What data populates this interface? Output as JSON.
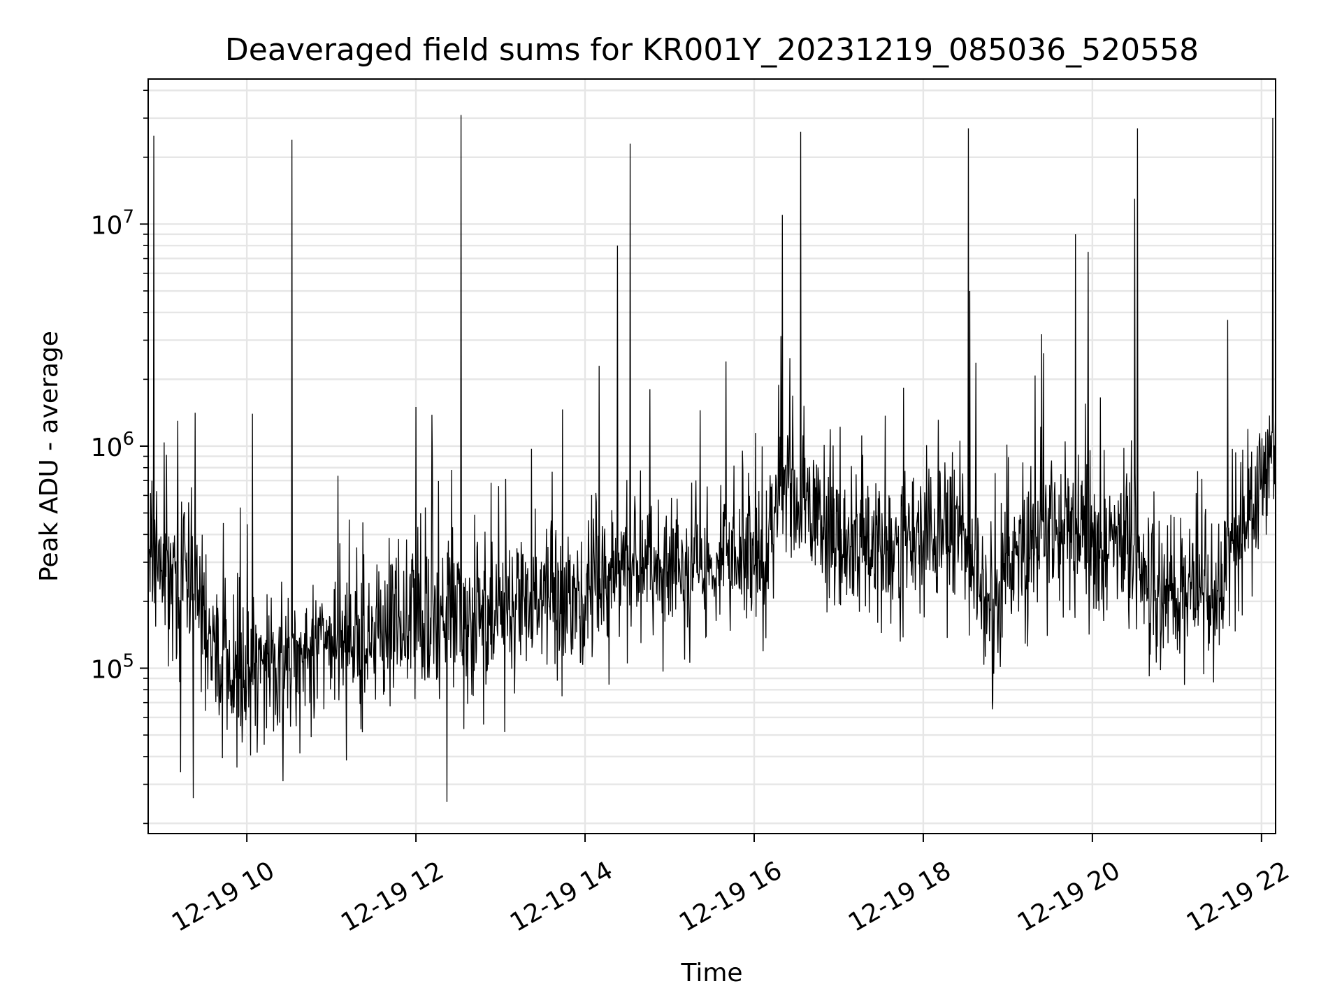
{
  "chart_data": {
    "type": "line",
    "title": "Deaveraged field sums for KR001Y_20231219_085036_520558",
    "xlabel": "Time",
    "ylabel": "Peak ADU - average",
    "yscale": "log",
    "ylim": [
      18000,
      45000000
    ],
    "xlim": [
      "2023-12-19 08:50",
      "2023-12-19 22:10"
    ],
    "grid": true,
    "line_color": "#000000",
    "grid_color": "#e6e6e6",
    "x_ticks": [
      {
        "value": "2023-12-19 10:00",
        "label": "12-19 10"
      },
      {
        "value": "2023-12-19 12:00",
        "label": "12-19 12"
      },
      {
        "value": "2023-12-19 14:00",
        "label": "12-19 14"
      },
      {
        "value": "2023-12-19 16:00",
        "label": "12-19 16"
      },
      {
        "value": "2023-12-19 18:00",
        "label": "12-19 18"
      },
      {
        "value": "2023-12-19 20:00",
        "label": "12-19 20"
      },
      {
        "value": "2023-12-19 22:00",
        "label": "12-19 22"
      }
    ],
    "y_ticks": [
      {
        "value": 100000,
        "base": "10",
        "exp": "5"
      },
      {
        "value": 1000000,
        "base": "10",
        "exp": "6"
      },
      {
        "value": 10000000,
        "base": "10",
        "exp": "7"
      }
    ],
    "baseline": [
      {
        "x": "2023-12-19 08:50",
        "y": 320000
      },
      {
        "x": "2023-12-19 09:15",
        "y": 260000
      },
      {
        "x": "2023-12-19 09:40",
        "y": 110000
      },
      {
        "x": "2023-12-19 10:00",
        "y": 95000
      },
      {
        "x": "2023-12-19 10:30",
        "y": 110000
      },
      {
        "x": "2023-12-19 11:00",
        "y": 130000
      },
      {
        "x": "2023-12-19 11:30",
        "y": 150000
      },
      {
        "x": "2023-12-19 12:00",
        "y": 165000
      },
      {
        "x": "2023-12-19 12:30",
        "y": 185000
      },
      {
        "x": "2023-12-19 13:00",
        "y": 190000
      },
      {
        "x": "2023-12-19 13:30",
        "y": 195000
      },
      {
        "x": "2023-12-19 14:00",
        "y": 220000
      },
      {
        "x": "2023-12-19 14:20",
        "y": 260000
      },
      {
        "x": "2023-12-19 14:40",
        "y": 300000
      },
      {
        "x": "2023-12-19 15:00",
        "y": 260000
      },
      {
        "x": "2023-12-19 15:30",
        "y": 250000
      },
      {
        "x": "2023-12-19 15:40",
        "y": 380000
      },
      {
        "x": "2023-12-19 16:00",
        "y": 280000
      },
      {
        "x": "2023-12-19 16:10",
        "y": 300000
      },
      {
        "x": "2023-12-19 16:20",
        "y": 800000
      },
      {
        "x": "2023-12-19 16:35",
        "y": 500000
      },
      {
        "x": "2023-12-19 17:00",
        "y": 380000
      },
      {
        "x": "2023-12-19 17:30",
        "y": 320000
      },
      {
        "x": "2023-12-19 18:00",
        "y": 420000
      },
      {
        "x": "2023-12-19 18:30",
        "y": 400000
      },
      {
        "x": "2023-12-19 18:50",
        "y": 170000
      },
      {
        "x": "2023-12-19 19:10",
        "y": 330000
      },
      {
        "x": "2023-12-19 19:40",
        "y": 420000
      },
      {
        "x": "2023-12-19 20:00",
        "y": 380000
      },
      {
        "x": "2023-12-19 20:30",
        "y": 380000
      },
      {
        "x": "2023-12-19 20:40",
        "y": 230000
      },
      {
        "x": "2023-12-19 21:00",
        "y": 220000
      },
      {
        "x": "2023-12-19 21:30",
        "y": 240000
      },
      {
        "x": "2023-12-19 21:45",
        "y": 420000
      },
      {
        "x": "2023-12-19 22:00",
        "y": 650000
      },
      {
        "x": "2023-12-19 22:10",
        "y": 900000
      }
    ],
    "spikes": [
      {
        "x": "2023-12-19 08:54",
        "y": 25000000
      },
      {
        "x": "2023-12-19 09:11",
        "y": 1300000
      },
      {
        "x": "2023-12-19 09:13",
        "y": 34000
      },
      {
        "x": "2023-12-19 09:22",
        "y": 26000
      },
      {
        "x": "2023-12-19 10:04",
        "y": 1400000
      },
      {
        "x": "2023-12-19 10:32",
        "y": 24000000
      },
      {
        "x": "2023-12-19 12:00",
        "y": 1500000
      },
      {
        "x": "2023-12-19 12:22",
        "y": 25000
      },
      {
        "x": "2023-12-19 12:32",
        "y": 31000000
      },
      {
        "x": "2023-12-19 14:10",
        "y": 2300000
      },
      {
        "x": "2023-12-19 14:23",
        "y": 8000000
      },
      {
        "x": "2023-12-19 14:32",
        "y": 23000000
      },
      {
        "x": "2023-12-19 16:20",
        "y": 11000000
      },
      {
        "x": "2023-12-19 16:33",
        "y": 26000000
      },
      {
        "x": "2023-12-19 18:32",
        "y": 27000000
      },
      {
        "x": "2023-12-19 18:33",
        "y": 5000000
      },
      {
        "x": "2023-12-19 19:48",
        "y": 9000000
      },
      {
        "x": "2023-12-19 19:57",
        "y": 7500000
      },
      {
        "x": "2023-12-19 20:30",
        "y": 13000000
      },
      {
        "x": "2023-12-19 20:32",
        "y": 27000000
      },
      {
        "x": "2023-12-19 21:36",
        "y": 3700000
      },
      {
        "x": "2023-12-19 22:08",
        "y": 30000000
      }
    ]
  }
}
